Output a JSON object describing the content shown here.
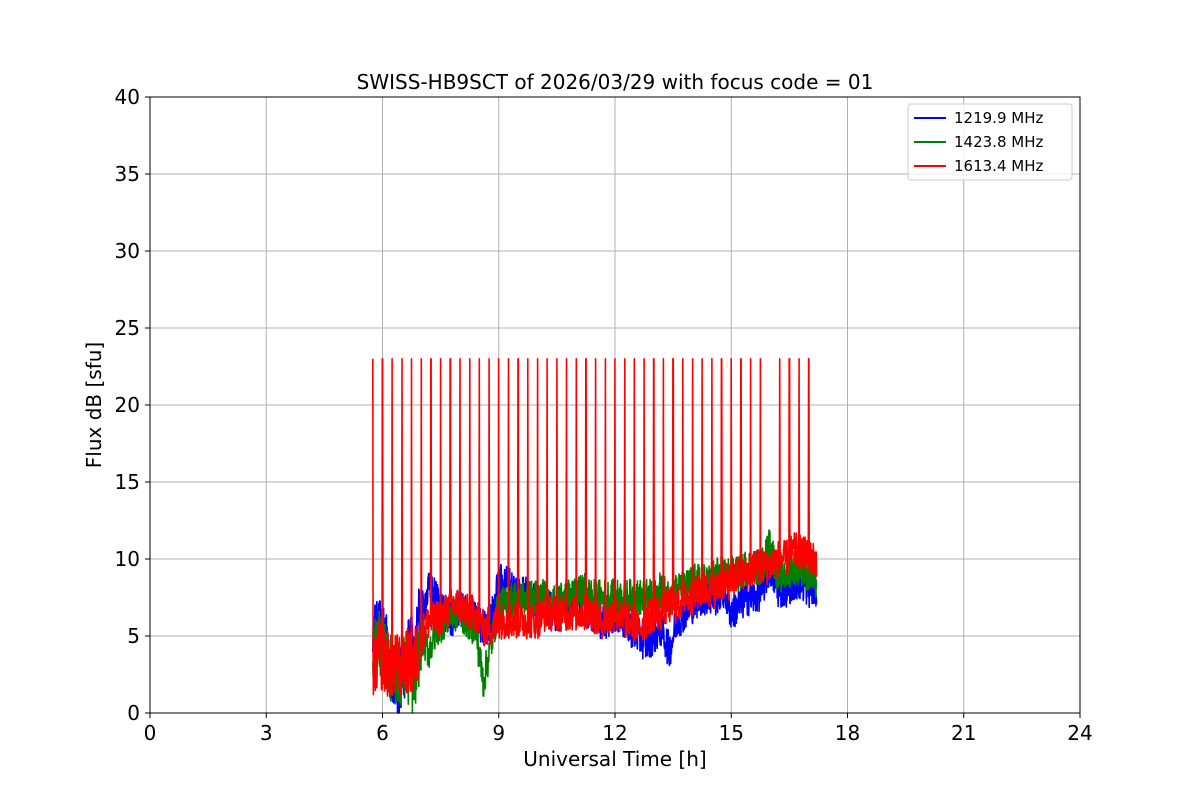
{
  "chart_data": {
    "type": "line",
    "title": "SWISS-HB9SCT of 2026/03/29 with focus code = 01",
    "xlabel": "Universal Time [h]",
    "ylabel": "Flux dB [sfu]",
    "xlim": [
      0,
      24
    ],
    "ylim": [
      0,
      40
    ],
    "xticks": [
      0,
      3,
      6,
      9,
      12,
      15,
      18,
      21,
      24
    ],
    "yticks": [
      0,
      5,
      10,
      15,
      20,
      25,
      30,
      35,
      40
    ],
    "xtick_labels": [
      "0",
      "3",
      "6",
      "9",
      "12",
      "15",
      "18",
      "21",
      "24"
    ],
    "ytick_labels": [
      "0",
      "5",
      "10",
      "15",
      "20",
      "25",
      "30",
      "35",
      "40"
    ],
    "grid": true,
    "legend_position": "top-right",
    "series": [
      {
        "name": "1219.9 MHz",
        "color": "#0000ff",
        "x": [
          5.75,
          5.9,
          6.0,
          6.2,
          6.4,
          6.6,
          6.8,
          7.0,
          7.2,
          7.4,
          7.6,
          7.8,
          8.0,
          8.2,
          8.4,
          8.6,
          8.8,
          9.0,
          9.2,
          9.4,
          9.6,
          9.8,
          10.0,
          10.2,
          10.4,
          10.6,
          10.8,
          11.0,
          11.2,
          11.4,
          11.6,
          11.8,
          12.0,
          12.2,
          12.4,
          12.6,
          12.8,
          13.0,
          13.2,
          13.4,
          13.6,
          13.8,
          14.0,
          14.2,
          14.4,
          14.6,
          14.8,
          15.0,
          15.2,
          15.4,
          15.6,
          15.8,
          16.0,
          16.2,
          16.4,
          16.6,
          16.8,
          17.0,
          17.2
        ],
        "values": [
          4.5,
          6.0,
          5.0,
          3.5,
          1.5,
          3.5,
          4.5,
          6.5,
          8.0,
          7.5,
          6.5,
          6.0,
          7.0,
          6.5,
          6.0,
          5.5,
          6.0,
          8.5,
          8.5,
          8.0,
          8.0,
          7.5,
          7.0,
          7.0,
          6.5,
          6.5,
          7.0,
          6.8,
          7.0,
          6.5,
          6.0,
          6.0,
          6.5,
          6.0,
          5.5,
          5.0,
          4.5,
          5.0,
          5.5,
          4.0,
          6.0,
          6.5,
          7.0,
          7.5,
          7.5,
          7.5,
          8.0,
          6.5,
          7.0,
          7.5,
          7.5,
          8.0,
          9.5,
          8.0,
          8.0,
          8.5,
          8.5,
          8.0,
          8.0
        ]
      },
      {
        "name": "1423.8 MHz",
        "color": "#008000",
        "x": [
          5.75,
          5.9,
          6.0,
          6.2,
          6.4,
          6.6,
          6.8,
          7.0,
          7.2,
          7.4,
          7.6,
          7.8,
          8.0,
          8.2,
          8.4,
          8.6,
          8.8,
          9.0,
          9.2,
          9.4,
          9.6,
          9.8,
          10.0,
          10.2,
          10.4,
          10.6,
          10.8,
          11.0,
          11.2,
          11.4,
          11.6,
          11.8,
          12.0,
          12.2,
          12.4,
          12.6,
          12.8,
          13.0,
          13.2,
          13.4,
          13.6,
          13.8,
          14.0,
          14.2,
          14.4,
          14.6,
          14.8,
          15.0,
          15.2,
          15.4,
          15.6,
          15.8,
          16.0,
          16.2,
          16.4,
          16.6,
          16.8,
          17.0,
          17.2
        ],
        "values": [
          3.5,
          5.0,
          4.0,
          3.0,
          2.5,
          3.0,
          1.5,
          5.0,
          4.0,
          5.5,
          6.0,
          6.5,
          6.5,
          6.0,
          5.5,
          2.0,
          4.5,
          7.0,
          7.0,
          7.5,
          7.5,
          7.5,
          7.5,
          7.5,
          7.0,
          7.5,
          7.5,
          7.5,
          8.0,
          7.5,
          7.5,
          7.5,
          7.5,
          7.5,
          7.5,
          7.5,
          7.5,
          7.5,
          8.0,
          7.5,
          8.0,
          8.0,
          8.5,
          8.5,
          8.5,
          9.0,
          9.0,
          9.0,
          9.0,
          9.5,
          9.5,
          9.5,
          11.0,
          9.0,
          9.0,
          9.5,
          9.5,
          9.0,
          8.5
        ]
      },
      {
        "name": "1613.4 MHz",
        "color": "#ff0000",
        "x": [
          5.75,
          5.9,
          6.0,
          6.2,
          6.4,
          6.6,
          6.8,
          7.0,
          7.2,
          7.4,
          7.6,
          7.8,
          8.0,
          8.2,
          8.4,
          8.6,
          8.8,
          9.0,
          9.2,
          9.4,
          9.6,
          9.8,
          10.0,
          10.2,
          10.4,
          10.6,
          10.8,
          11.0,
          11.2,
          11.4,
          11.6,
          11.8,
          12.0,
          12.2,
          12.4,
          12.6,
          12.8,
          13.0,
          13.2,
          13.4,
          13.6,
          13.8,
          14.0,
          14.2,
          14.4,
          14.6,
          14.8,
          15.0,
          15.2,
          15.4,
          15.6,
          15.8,
          16.0,
          16.2,
          16.4,
          16.6,
          16.8,
          17.0,
          17.2
        ],
        "values": [
          2.5,
          4.0,
          3.5,
          3.0,
          3.0,
          3.5,
          3.0,
          5.0,
          6.0,
          6.0,
          6.5,
          7.0,
          7.0,
          6.5,
          6.5,
          5.5,
          5.5,
          6.0,
          6.0,
          6.0,
          6.0,
          6.0,
          6.0,
          6.5,
          6.5,
          6.5,
          6.5,
          6.5,
          6.5,
          6.5,
          6.0,
          6.0,
          6.5,
          6.0,
          6.0,
          5.5,
          6.0,
          6.5,
          6.5,
          7.0,
          7.0,
          7.5,
          7.5,
          8.0,
          8.0,
          8.0,
          8.5,
          8.5,
          9.0,
          9.0,
          9.5,
          9.5,
          9.5,
          10.0,
          10.0,
          10.5,
          10.5,
          10.0,
          10.0
        ],
        "spikes": {
          "peak": 23.0,
          "x": [
            5.75,
            6.0,
            6.25,
            6.5,
            6.75,
            7.0,
            7.25,
            7.5,
            7.75,
            8.0,
            8.25,
            8.5,
            8.75,
            9.0,
            9.25,
            9.5,
            9.75,
            10.0,
            10.25,
            10.5,
            10.75,
            11.0,
            11.25,
            11.5,
            11.75,
            12.0,
            12.25,
            12.5,
            12.75,
            13.0,
            13.25,
            13.5,
            13.75,
            14.0,
            14.25,
            14.5,
            14.75,
            15.0,
            15.25,
            15.5,
            15.75,
            16.25,
            16.5,
            16.75,
            17.0
          ]
        }
      }
    ]
  }
}
